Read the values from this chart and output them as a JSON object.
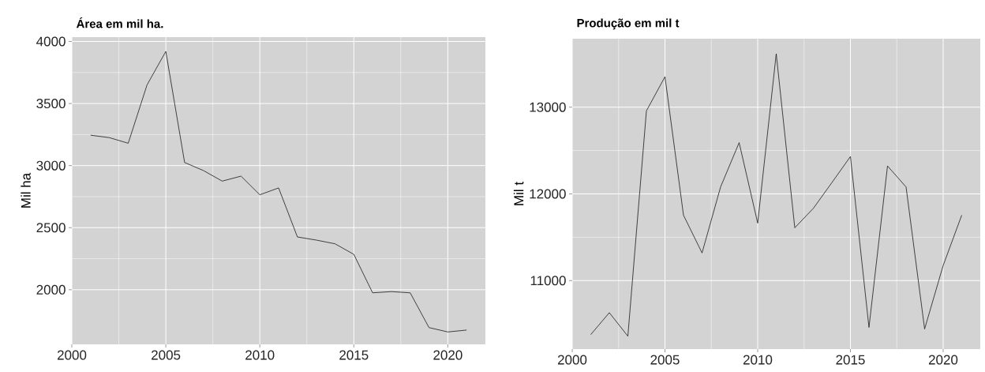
{
  "chart_data": [
    {
      "type": "line",
      "title": "Área em mil ha.",
      "ylabel": "Mil ha",
      "color": "#1a1a1a",
      "x": [
        2001,
        2002,
        2003,
        2004,
        2005,
        2006,
        2007,
        2008,
        2009,
        2010,
        2011,
        2012,
        2013,
        2014,
        2015,
        2016,
        2017,
        2018,
        2019,
        2020,
        2021
      ],
      "values": [
        3245,
        3225,
        3180,
        3650,
        3920,
        3025,
        2960,
        2875,
        2915,
        2765,
        2820,
        2425,
        2400,
        2370,
        2285,
        1975,
        1985,
        1975,
        1695,
        1660,
        1675
      ],
      "xlim": [
        2000,
        2022
      ],
      "xticks": [
        2000,
        2005,
        2010,
        2015,
        2020
      ],
      "ylim": [
        1560,
        4035
      ],
      "yticks": [
        2000,
        2500,
        3000,
        3500,
        4000
      ],
      "grid": true
    },
    {
      "type": "line",
      "title": "Produção em mil t",
      "ylabel": "Mil t",
      "color": "#1a1a1a",
      "x": [
        2001,
        2002,
        2003,
        2004,
        2005,
        2006,
        2007,
        2008,
        2009,
        2010,
        2011,
        2012,
        2013,
        2014,
        2015,
        2016,
        2017,
        2018,
        2019,
        2020,
        2021
      ],
      "values": [
        10377,
        10630,
        10359,
        12957,
        13351,
        11754,
        11319,
        12080,
        12591,
        11663,
        13616,
        11609,
        11833,
        12130,
        12431,
        10460,
        12322,
        12080,
        10442,
        11174,
        11754
      ],
      "xlim": [
        2000,
        2022
      ],
      "xticks": [
        2000,
        2005,
        2010,
        2015,
        2020
      ],
      "ylim": [
        10210,
        13790
      ],
      "yticks": [
        11000,
        12000,
        13000
      ],
      "grid": true
    }
  ]
}
